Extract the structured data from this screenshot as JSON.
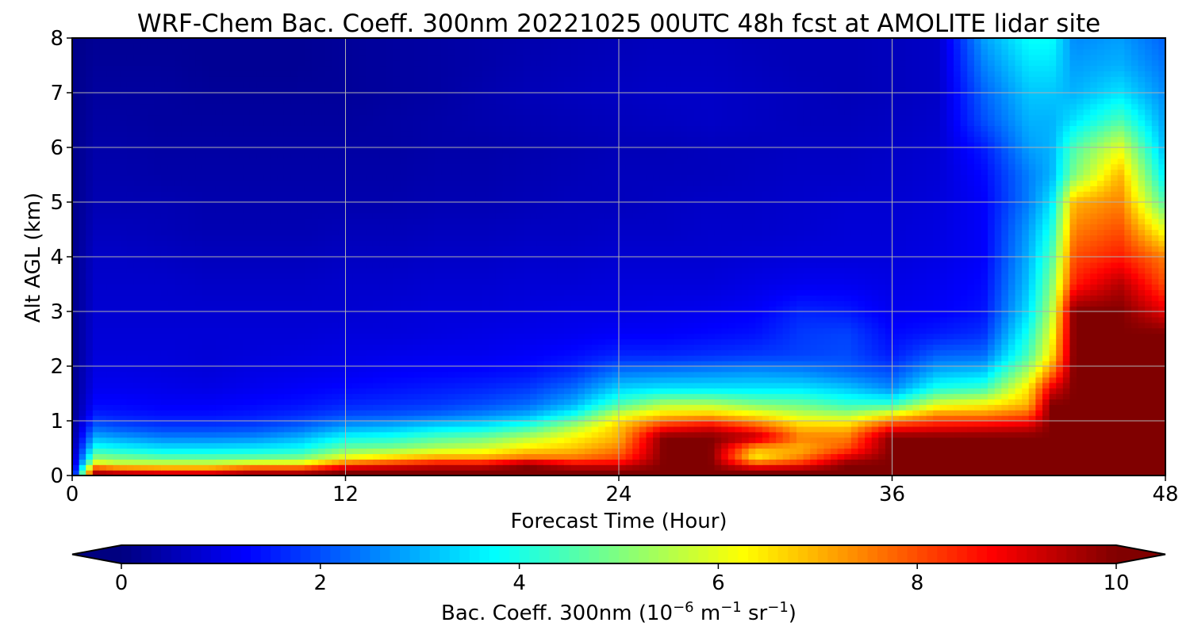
{
  "chart_data": {
    "type": "heatmap",
    "title": "WRF-Chem Bac. Coeff. 300nm  20221025 00UTC 48h fcst at AMOLITE lidar site",
    "xlabel": "Forecast Time (Hour)",
    "ylabel": "Alt AGL (km)",
    "xlim": [
      0,
      48
    ],
    "ylim": [
      0,
      8
    ],
    "xticks": [
      0,
      12,
      24,
      36,
      48
    ],
    "yticks": [
      0,
      1,
      2,
      3,
      4,
      5,
      6,
      7,
      8
    ],
    "grid": true,
    "colormap": "jet",
    "colorbar": {
      "range": [
        0,
        10
      ],
      "ticks": [
        0,
        2,
        4,
        6,
        8,
        10
      ],
      "extend": "both",
      "orientation": "horizontal",
      "label_main": "Bac. Coeff. 300nm  (10",
      "label_exp1": "−6",
      "label_unit1": " m",
      "label_exp2": "−1",
      "label_unit2": " sr",
      "label_exp3": "−1",
      "label_close": ")"
    },
    "x_hours": [
      0,
      1,
      2,
      4,
      6,
      8,
      10,
      12,
      14,
      16,
      18,
      20,
      22,
      24,
      26,
      28,
      30,
      32,
      34,
      36,
      38,
      40,
      42,
      43,
      44,
      46,
      48
    ],
    "z_alts_km": [
      0,
      0.1,
      0.2,
      0.35,
      0.5,
      0.7,
      0.9,
      1.1,
      1.3,
      1.6,
      1.9,
      2.2,
      2.6,
      3.0,
      3.5,
      4.0,
      4.5,
      5.0,
      5.5,
      6.0,
      6.5,
      7.0,
      7.5,
      8.0
    ],
    "values_by_alt": [
      [
        0.5,
        10,
        10,
        10,
        10,
        10,
        10,
        10,
        10,
        10,
        10,
        10,
        10,
        10,
        10,
        10,
        10,
        10,
        10,
        10,
        10,
        10,
        10,
        10,
        10,
        10,
        10
      ],
      [
        0.4,
        9,
        8.5,
        8,
        8,
        9,
        9,
        10,
        10,
        10,
        10,
        10,
        10,
        10,
        10,
        10,
        10,
        10,
        10,
        10,
        10,
        10,
        10,
        10,
        10,
        10,
        10
      ],
      [
        0.3,
        6.5,
        6,
        6,
        6,
        6.5,
        6.5,
        8,
        8.5,
        9,
        9,
        10,
        9,
        9,
        10,
        10,
        8,
        8.5,
        10,
        10,
        10,
        10,
        10,
        10,
        10,
        10,
        10
      ],
      [
        0.25,
        5,
        4.8,
        4.5,
        4.5,
        4.6,
        4.8,
        6,
        6.5,
        7,
        7,
        7.5,
        7.5,
        8,
        10,
        10,
        6.5,
        7.5,
        9,
        10,
        10,
        10,
        10,
        10,
        10,
        10,
        10
      ],
      [
        0.2,
        4,
        3.8,
        3.5,
        3.5,
        3.6,
        3.8,
        4.8,
        5,
        5.5,
        5.8,
        6.5,
        6.8,
        7.5,
        10,
        10,
        7,
        7,
        8,
        10,
        10,
        10,
        10,
        10,
        10,
        10,
        10
      ],
      [
        0.15,
        3,
        2.8,
        2.5,
        2.5,
        2.6,
        3,
        3.8,
        4,
        4.5,
        4.8,
        5.5,
        6.3,
        7,
        10,
        10,
        9.5,
        7.5,
        7.5,
        10,
        10,
        10,
        10,
        10,
        10,
        10,
        10
      ],
      [
        0.12,
        2.2,
        2,
        1.8,
        1.8,
        1.9,
        2.2,
        2.8,
        3,
        3.4,
        3.6,
        4.2,
        5.4,
        6.8,
        8.5,
        9,
        8,
        6.8,
        6.8,
        8.5,
        8.8,
        9,
        9.2,
        10,
        10,
        10,
        10
      ],
      [
        0.1,
        1.6,
        1.5,
        1.4,
        1.4,
        1.5,
        1.7,
        2,
        2.1,
        2.3,
        2.6,
        3,
        4,
        6,
        6.8,
        7,
        6.5,
        5.8,
        5.5,
        6.5,
        7.5,
        7.5,
        8,
        10,
        10,
        10,
        10
      ],
      [
        0.1,
        1.3,
        1.3,
        1.2,
        1.2,
        1.3,
        1.4,
        1.6,
        1.7,
        1.8,
        2,
        2.3,
        3,
        4.5,
        5.5,
        5.5,
        5,
        4.8,
        4.3,
        4.3,
        6,
        6.3,
        7,
        10,
        10,
        10,
        10
      ],
      [
        0.08,
        1.1,
        1.1,
        1.05,
        1,
        1.1,
        1.2,
        1.3,
        1.4,
        1.5,
        1.6,
        1.8,
        2.3,
        3.3,
        3.5,
        3.5,
        3.5,
        3.5,
        3.2,
        2.6,
        4,
        4.3,
        6.5,
        9,
        10,
        10,
        10
      ],
      [
        0.08,
        1,
        1,
        0.95,
        0.9,
        1,
        1.05,
        1.1,
        1.2,
        1.25,
        1.3,
        1.4,
        1.7,
        2.4,
        2.5,
        2.6,
        2.7,
        2.6,
        2.3,
        2,
        3,
        3.2,
        5.5,
        7.5,
        10,
        10,
        10
      ],
      [
        0.08,
        0.9,
        0.9,
        0.9,
        0.85,
        0.9,
        0.95,
        1,
        1.05,
        1.1,
        1.1,
        1.2,
        1.35,
        1.6,
        1.6,
        1.7,
        1.8,
        1.9,
        2,
        1.5,
        2.2,
        2.3,
        4.5,
        6.5,
        10,
        10,
        10
      ],
      [
        0.08,
        0.85,
        0.85,
        0.85,
        0.85,
        0.85,
        0.85,
        0.9,
        0.9,
        0.95,
        1,
        1.05,
        1.1,
        1.2,
        1.2,
        1.3,
        1.4,
        1.8,
        1.9,
        1.3,
        1.5,
        1.7,
        4,
        6,
        10,
        10,
        10
      ],
      [
        0.08,
        0.8,
        0.8,
        0.8,
        0.8,
        0.8,
        0.8,
        0.8,
        0.85,
        0.9,
        0.9,
        0.95,
        1,
        1,
        1.05,
        1.1,
        1.2,
        1.6,
        1.5,
        1.1,
        1.2,
        1.4,
        3.5,
        5.5,
        10,
        10,
        9
      ],
      [
        0.08,
        0.75,
        0.75,
        0.75,
        0.7,
        0.7,
        0.7,
        0.75,
        0.75,
        0.8,
        0.8,
        0.85,
        0.85,
        0.9,
        0.9,
        0.9,
        1,
        1.1,
        1.1,
        1,
        1.1,
        1.3,
        3.2,
        5,
        8.5,
        9.5,
        8
      ],
      [
        0.08,
        0.7,
        0.7,
        0.65,
        0.6,
        0.6,
        0.6,
        0.65,
        0.65,
        0.7,
        0.7,
        0.75,
        0.75,
        0.8,
        0.8,
        0.8,
        0.85,
        0.9,
        0.9,
        0.9,
        1,
        1.2,
        3,
        4.5,
        8,
        8.5,
        7.5
      ],
      [
        0.08,
        0.6,
        0.6,
        0.55,
        0.5,
        0.5,
        0.5,
        0.55,
        0.55,
        0.6,
        0.6,
        0.65,
        0.65,
        0.7,
        0.7,
        0.75,
        0.75,
        0.8,
        0.85,
        0.85,
        0.95,
        1.2,
        2.8,
        4,
        7.5,
        8,
        6
      ],
      [
        0.08,
        0.5,
        0.5,
        0.5,
        0.45,
        0.45,
        0.45,
        0.45,
        0.45,
        0.5,
        0.5,
        0.55,
        0.6,
        0.6,
        0.65,
        0.7,
        0.7,
        0.75,
        0.8,
        0.8,
        0.9,
        1.2,
        2.5,
        3.5,
        7,
        7.5,
        4.5
      ],
      [
        0.08,
        0.45,
        0.45,
        0.4,
        0.4,
        0.4,
        0.4,
        0.4,
        0.4,
        0.45,
        0.45,
        0.5,
        0.55,
        0.6,
        0.6,
        0.6,
        0.65,
        0.7,
        0.7,
        0.75,
        0.85,
        1.3,
        2.5,
        3,
        5,
        7,
        3.5
      ],
      [
        0.08,
        0.4,
        0.4,
        0.35,
        0.35,
        0.35,
        0.35,
        0.35,
        0.35,
        0.4,
        0.4,
        0.45,
        0.5,
        0.55,
        0.55,
        0.6,
        0.6,
        0.65,
        0.65,
        0.7,
        0.8,
        1.5,
        2.8,
        3,
        4.5,
        6,
        3
      ],
      [
        0.08,
        0.35,
        0.35,
        0.3,
        0.3,
        0.3,
        0.3,
        0.3,
        0.35,
        0.4,
        0.45,
        0.5,
        0.55,
        0.6,
        0.65,
        0.7,
        0.65,
        0.6,
        0.6,
        0.65,
        0.75,
        2,
        3,
        3,
        3.5,
        4.5,
        2.8
      ],
      [
        0.08,
        0.3,
        0.3,
        0.3,
        0.25,
        0.25,
        0.25,
        0.25,
        0.3,
        0.35,
        0.45,
        0.55,
        0.6,
        0.65,
        0.7,
        0.7,
        0.65,
        0.6,
        0.55,
        0.6,
        0.7,
        2.2,
        3.2,
        3.2,
        3,
        3.5,
        2.6
      ],
      [
        0.08,
        0.25,
        0.25,
        0.25,
        0.2,
        0.2,
        0.2,
        0.25,
        0.3,
        0.35,
        0.4,
        0.5,
        0.55,
        0.6,
        0.65,
        0.65,
        0.6,
        0.55,
        0.55,
        0.6,
        0.7,
        2.5,
        3.5,
        3.5,
        2.8,
        3,
        2.4
      ],
      [
        0.08,
        0.2,
        0.2,
        0.2,
        0.2,
        0.2,
        0.2,
        0.25,
        0.3,
        0.35,
        0.4,
        0.45,
        0.5,
        0.55,
        0.6,
        0.6,
        0.55,
        0.55,
        0.55,
        0.6,
        0.7,
        2.8,
        3.8,
        3.8,
        2.6,
        2.8,
        2.2
      ]
    ]
  }
}
